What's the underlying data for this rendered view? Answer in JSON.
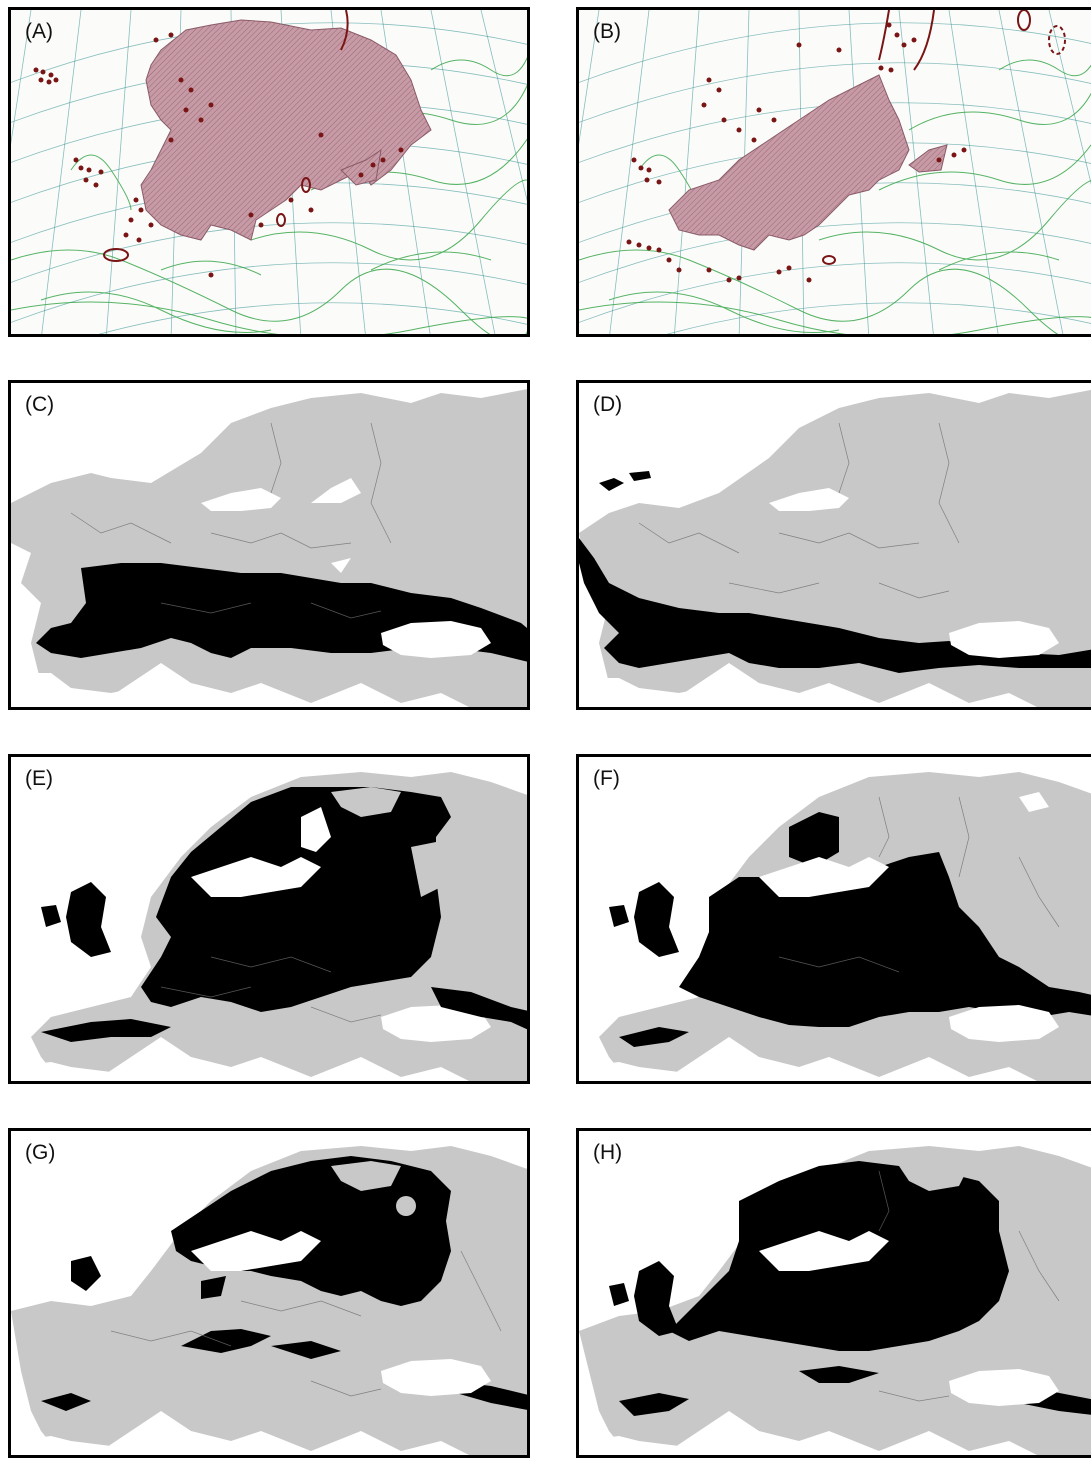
{
  "panels": [
    {
      "id": "A",
      "label": "(A)",
      "kind": "range-map"
    },
    {
      "id": "B",
      "label": "(B)",
      "kind": "range-map"
    },
    {
      "id": "C",
      "label": "(C)",
      "kind": "model-map"
    },
    {
      "id": "D",
      "label": "(D)",
      "kind": "model-map"
    },
    {
      "id": "E",
      "label": "(E)",
      "kind": "model-map"
    },
    {
      "id": "F",
      "label": "(F)",
      "kind": "model-map"
    },
    {
      "id": "G",
      "label": "(G)",
      "kind": "model-map"
    },
    {
      "id": "H",
      "label": "(H)",
      "kind": "model-map"
    }
  ],
  "colors": {
    "range_fill": "#c79ba6",
    "range_hatch": "#9a6676",
    "occurrence_dot": "#7a1515",
    "contour": "#3aa64a",
    "grid": "#2a8a8a",
    "land": "#c8c8c8",
    "suitable": "#000000",
    "sea": "#ffffff",
    "frame": "#000000"
  }
}
